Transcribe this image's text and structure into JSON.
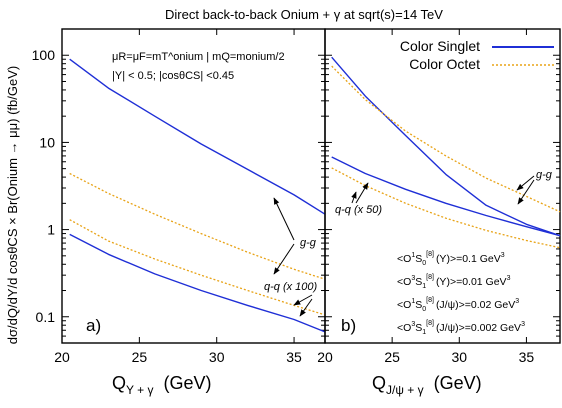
{
  "title": "Direct back-to-back Onium + γ at sqrt(s)=14 TeV",
  "ylabel": "dσ/dQ/dY/d cosθCS × Br(Onium → μμ) (fb/GeV)",
  "colors": {
    "singlet": "#1f2fd6",
    "octet": "#e8a317"
  },
  "chart_data": [
    {
      "type": "line",
      "panel_label": "a)",
      "xlabel": "QΥ+γ (GeV)",
      "xlabel_main": "Q",
      "xlabel_sub": "Υ + γ",
      "xlabel_unit": "(GeV)",
      "xlim": [
        20,
        37
      ],
      "ylim": [
        0.05,
        200
      ],
      "log_y": true,
      "x_ticks": [
        20,
        25,
        30,
        35
      ],
      "y_ticks": [
        0.1,
        1,
        10,
        100
      ],
      "y_tick_labels": [
        "0.1",
        "1",
        "10",
        "100"
      ],
      "legend": [],
      "info": [
        "μR=μF=mT^onium | mQ=monium/2",
        "|Y| < 0.5; |cosθCS| <0.45"
      ],
      "annotations": [
        "g-g",
        "q-q (x 100)"
      ],
      "series": [
        {
          "group": "singlet",
          "x": [
            20.5,
            23,
            26,
            29,
            32,
            35,
            37
          ],
          "values": [
            90,
            42,
            20,
            9.6,
            4.9,
            2.5,
            1.5
          ]
        },
        {
          "group": "octet",
          "x": [
            20.5,
            23,
            26,
            29,
            32,
            35,
            37
          ],
          "values": [
            4.4,
            2.6,
            1.5,
            0.9,
            0.55,
            0.35,
            0.27
          ]
        },
        {
          "group": "octet",
          "x": [
            20.5,
            23,
            26,
            29,
            32,
            35,
            37
          ],
          "values": [
            1.3,
            0.74,
            0.46,
            0.3,
            0.2,
            0.135,
            0.105
          ]
        },
        {
          "group": "singlet",
          "x": [
            20.5,
            23,
            26,
            29,
            32,
            35,
            37
          ],
          "values": [
            0.88,
            0.52,
            0.31,
            0.2,
            0.135,
            0.093,
            0.067
          ]
        }
      ]
    },
    {
      "type": "line",
      "panel_label": "b)",
      "xlabel": "QJ/ψ+γ (GeV)",
      "xlabel_main": "Q",
      "xlabel_sub": "J/ψ + γ",
      "xlabel_unit": "(GeV)",
      "xlim": [
        20,
        37.5
      ],
      "ylim": [
        0.05,
        200
      ],
      "log_y": true,
      "x_ticks": [
        20,
        25,
        30,
        35
      ],
      "legend": [
        {
          "group": "singlet",
          "label": "Color Singlet"
        },
        {
          "group": "octet",
          "label": "Color Octet"
        }
      ],
      "annotations": [
        "g-g",
        "q-q (x 50)"
      ],
      "ldme": [
        {
          "operator": "<O",
          "sup": "1",
          "state": "S",
          "state_sub": "0",
          "octet": "[8]",
          "meson": "(Υ)",
          "value": ">=0.1 GeV",
          "power": "3"
        },
        {
          "operator": "<O",
          "sup": "3",
          "state": "S",
          "state_sub": "1",
          "octet": "[8]",
          "meson": "(Υ)",
          "value": ">=0.01 GeV",
          "power": "3"
        },
        {
          "operator": "<O",
          "sup": "1",
          "state": "S",
          "state_sub": "0",
          "octet": "[8]",
          "meson": "(J/ψ)",
          "value": ">=0.02 GeV",
          "power": "3"
        },
        {
          "operator": "<O",
          "sup": "3",
          "state": "S",
          "state_sub": "1",
          "octet": "[8]",
          "meson": "(J/ψ)",
          "value": ">=0.002 GeV",
          "power": "3"
        }
      ],
      "series": [
        {
          "group": "singlet",
          "x": [
            20.5,
            23,
            26,
            29,
            32,
            35,
            37.5
          ],
          "values": [
            95,
            34,
            12,
            4.3,
            1.9,
            1.15,
            0.85
          ]
        },
        {
          "group": "octet",
          "x": [
            20.5,
            23,
            26,
            29,
            32,
            35,
            37.5
          ],
          "values": [
            75,
            31,
            13.5,
            7,
            3.9,
            2.4,
            1.6
          ]
        },
        {
          "group": "singlet",
          "x": [
            20.5,
            23,
            26,
            29,
            32,
            35,
            37.5
          ],
          "values": [
            6.8,
            4.4,
            2.9,
            2.0,
            1.45,
            1.08,
            0.85
          ]
        },
        {
          "group": "octet",
          "x": [
            20.5,
            23,
            26,
            29,
            32,
            35,
            37.5
          ],
          "values": [
            5.1,
            3.2,
            2.0,
            1.35,
            0.98,
            0.75,
            0.62
          ]
        }
      ]
    }
  ]
}
